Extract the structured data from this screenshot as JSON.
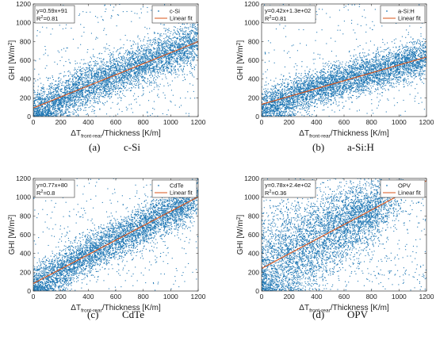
{
  "chart_data": [
    {
      "type": "scatter",
      "id": "a",
      "series": [
        {
          "name": "c-Si",
          "color": "#1f77b4",
          "marker": "point"
        },
        {
          "name": "Linear fit",
          "color": "#d95319",
          "slope": 0.59,
          "intercept": 91
        }
      ],
      "annotation": {
        "line1": "y=0.59x+91",
        "r2_prefix": "R",
        "r2_sup": "2",
        "r2_value": "=0.81"
      },
      "xlabel": {
        "prefix": "ΔT",
        "sub": "front-rear",
        "suffix": "/Thickness [K/m]"
      },
      "ylabel": {
        "prefix": "GHI [W/m",
        "sup": "2",
        "suffix": "]"
      },
      "xlim": [
        0,
        1200
      ],
      "ylim": [
        0,
        1200
      ],
      "xticks": [
        "0",
        "200",
        "400",
        "600",
        "800",
        "1000",
        "1200"
      ],
      "yticks": [
        "0",
        "200",
        "400",
        "600",
        "800",
        "1000",
        "1200"
      ],
      "caption": {
        "letter": "(a)",
        "name": "c-Si"
      },
      "cloud": {
        "xmin": 0,
        "xmax": 1200,
        "slope": 0.59,
        "intercept": 91,
        "spread": 115,
        "outliers": 0.07,
        "noise_grows": false
      }
    },
    {
      "type": "scatter",
      "id": "b",
      "series": [
        {
          "name": "a-Si:H",
          "color": "#1f77b4",
          "marker": "point"
        },
        {
          "name": "Linear fit",
          "color": "#d95319",
          "slope": 0.42,
          "intercept": 130
        }
      ],
      "annotation": {
        "line1": "y=0.42x+1.3e+02",
        "r2_prefix": "R",
        "r2_sup": "2",
        "r2_value": "=0.81"
      },
      "xlabel": {
        "prefix": "ΔT",
        "sub": "front-rear",
        "suffix": "/Thickness [K/m]"
      },
      "ylabel": {
        "prefix": "GHI [W/m",
        "sup": "2",
        "suffix": "]"
      },
      "xlim": [
        0,
        1200
      ],
      "ylim": [
        0,
        1200
      ],
      "xticks": [
        "0",
        "200",
        "400",
        "600",
        "800",
        "1000",
        "1200"
      ],
      "yticks": [
        "0",
        "200",
        "400",
        "600",
        "800",
        "1000",
        "1200"
      ],
      "caption": {
        "letter": "(b)",
        "name": "a-Si:H"
      },
      "cloud": {
        "xmin": 0,
        "xmax": 1200,
        "slope": 0.42,
        "intercept": 130,
        "spread": 95,
        "outliers": 0.06,
        "noise_grows": false
      }
    },
    {
      "type": "scatter",
      "id": "c",
      "series": [
        {
          "name": "CdTe",
          "color": "#1f77b4",
          "marker": "point"
        },
        {
          "name": "Linear fit",
          "color": "#d95319",
          "slope": 0.77,
          "intercept": 80
        }
      ],
      "annotation": {
        "line1": "y=0.77x+80",
        "r2_prefix": "R",
        "r2_sup": "2",
        "r2_value": "=0.8"
      },
      "xlabel": {
        "prefix": "ΔT",
        "sub": "front-rear",
        "suffix": "/Thickness [K/m]"
      },
      "ylabel": {
        "prefix": "GHI [W/m",
        "sup": "2",
        "suffix": "]"
      },
      "xlim": [
        0,
        1200
      ],
      "ylim": [
        0,
        1200
      ],
      "xticks": [
        "0",
        "200",
        "400",
        "600",
        "800",
        "1000",
        "1200"
      ],
      "yticks": [
        "0",
        "200",
        "400",
        "600",
        "800",
        "1000",
        "1200"
      ],
      "caption": {
        "letter": "(c)",
        "name": "CdTe"
      },
      "cloud": {
        "xmin": 0,
        "xmax": 1200,
        "slope": 0.77,
        "intercept": 80,
        "spread": 110,
        "outliers": 0.06,
        "noise_grows": false
      }
    },
    {
      "type": "scatter",
      "id": "d",
      "series": [
        {
          "name": "OPV",
          "color": "#1f77b4",
          "marker": "point"
        },
        {
          "name": "Linear fit",
          "color": "#d95319",
          "slope": 0.78,
          "intercept": 240
        }
      ],
      "annotation": {
        "line1": "y=0.78x+2.4e+02",
        "r2_prefix": "R",
        "r2_sup": "2",
        "r2_value": "=0.36"
      },
      "xlabel": {
        "prefix": "ΔT",
        "sub": "front-rear",
        "suffix": "/Thickness [K/m]"
      },
      "ylabel": {
        "prefix": "GHI [W/m",
        "sup": "2",
        "suffix": "]"
      },
      "xlim": [
        0,
        1200
      ],
      "ylim": [
        0,
        1200
      ],
      "xticks": [
        "0",
        "200",
        "400",
        "600",
        "800",
        "1000",
        "1200"
      ],
      "yticks": [
        "0",
        "200",
        "400",
        "600",
        "800",
        "1000",
        "1200"
      ],
      "caption": {
        "letter": "(d)",
        "name": "OPV"
      },
      "cloud": {
        "xmin": 0,
        "xmax": 900,
        "slope": 0.78,
        "intercept": 240,
        "spread": 230,
        "outliers": 0.12,
        "noise_grows": true
      }
    }
  ]
}
